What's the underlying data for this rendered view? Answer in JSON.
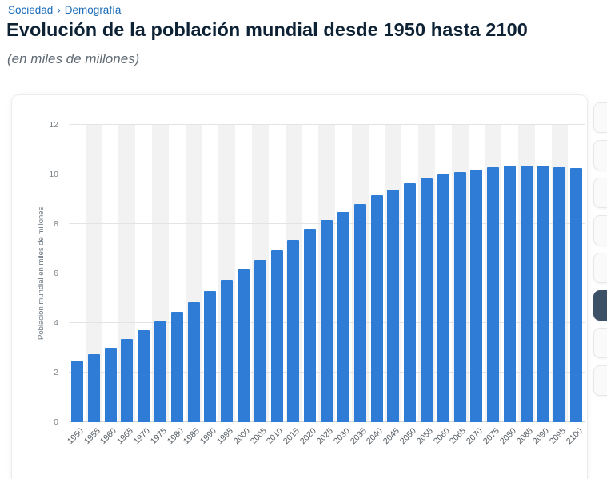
{
  "breadcrumb": {
    "section": "Sociedad",
    "separator": "›",
    "subsection": "Demografía"
  },
  "page": {
    "title": "Evolución de la población mundial desde 1950 hasta 2100",
    "subtitle": "(en miles de millones)"
  },
  "colors": {
    "breadcrumb_link": "#1a6bb8",
    "title_text": "#0d2235",
    "bar_blue": "#2f7cd7",
    "stripe_gray": "#f2f2f2",
    "gridline_gray": "#e3e3e3",
    "dark_button": "#3d5166"
  },
  "toolbar": {
    "buttons": [
      {
        "variant": "light"
      },
      {
        "variant": "light"
      },
      {
        "variant": "light"
      },
      {
        "variant": "light"
      },
      {
        "variant": "light"
      },
      {
        "variant": "dark"
      },
      {
        "variant": "light"
      },
      {
        "variant": "light"
      }
    ]
  },
  "chart_data": {
    "type": "bar",
    "title": "Evolución de la población mundial desde 1950 hasta 2100",
    "subtitle": "(en miles de millones)",
    "xlabel": "",
    "ylabel": "Población mundial en miles de millones",
    "ylim": [
      0,
      12
    ],
    "yticks": [
      0,
      2,
      4,
      6,
      8,
      10,
      12
    ],
    "grid": true,
    "legend": false,
    "bar_color": "#2f7cd7",
    "stripe_color": "#f2f2f2",
    "categories": [
      "1950",
      "1955",
      "1960",
      "1965",
      "1970",
      "1975",
      "1980",
      "1985",
      "1990",
      "1995",
      "2000",
      "2005",
      "2010",
      "2015",
      "2020",
      "2025",
      "2030",
      "2035",
      "2040",
      "2045",
      "2050",
      "2055",
      "2060",
      "2065",
      "2070",
      "2075",
      "2080",
      "2085",
      "2090",
      "2095",
      "2100"
    ],
    "values": [
      2.5,
      2.75,
      3.0,
      3.35,
      3.7,
      4.07,
      4.45,
      4.85,
      5.3,
      5.75,
      6.15,
      6.55,
      6.95,
      7.35,
      7.8,
      8.15,
      8.5,
      8.8,
      9.15,
      9.4,
      9.65,
      9.85,
      10.0,
      10.1,
      10.2,
      10.3,
      10.35,
      10.35,
      10.35,
      10.3,
      10.25
    ]
  }
}
